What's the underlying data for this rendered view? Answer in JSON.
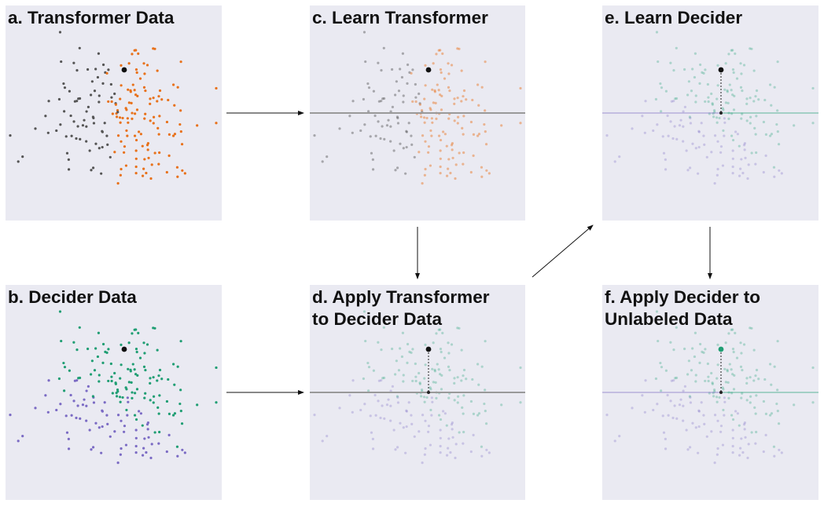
{
  "panels": [
    {
      "id": "a",
      "title": "a. Transformer Data",
      "mode": "transformer_data"
    },
    {
      "id": "b",
      "title": "b. Decider Data",
      "mode": "decider_data"
    },
    {
      "id": "c",
      "title": "c. Learn Transformer",
      "mode": "learn_transformer"
    },
    {
      "id": "d",
      "title": "d. Apply Transformer\nto Decider Data",
      "mode": "apply_transformer"
    },
    {
      "id": "e",
      "title": "e. Learn Decider",
      "mode": "learn_decider"
    },
    {
      "id": "f",
      "title": "f. Apply Decider to\nUnlabeled Data",
      "mode": "apply_decider"
    }
  ],
  "colors": {
    "panel_background": "#eaeaf2",
    "transformer_class_a": "#555555",
    "transformer_class_b": "#e8711a",
    "decider_class_a": "#7b6bc4",
    "decider_class_b": "#1f9e73",
    "projection_line": "#999999",
    "query_point": "#111111",
    "arrow": "#111111"
  }
}
